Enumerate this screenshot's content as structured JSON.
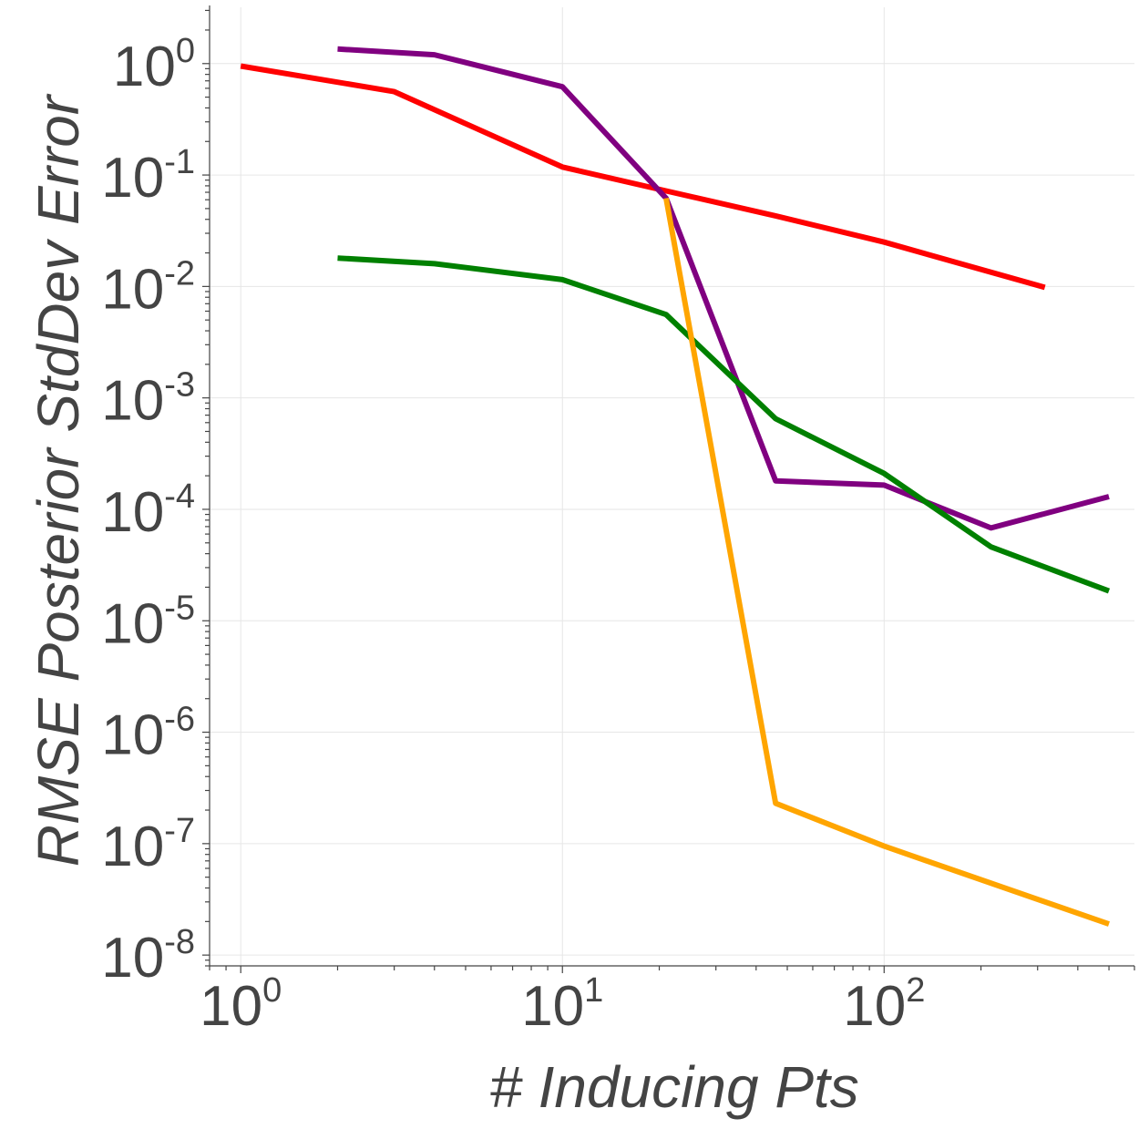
{
  "chart_data": {
    "type": "line",
    "title": "",
    "xlabel": "# Inducing Pts",
    "ylabel": "RMSE Posterior StdDev Error",
    "xscale": "log",
    "yscale": "log",
    "xlim": [
      0.8,
      600
    ],
    "ylim": [
      8e-09,
      3.2
    ],
    "grid": true,
    "xticks": [
      {
        "value": 1,
        "base": "10",
        "exp": "0"
      },
      {
        "value": 10,
        "base": "10",
        "exp": "1"
      },
      {
        "value": 100,
        "base": "10",
        "exp": "2"
      }
    ],
    "yticks": [
      {
        "value": 1,
        "base": "10",
        "exp": "0"
      },
      {
        "value": 0.1,
        "base": "10",
        "exp": "-1"
      },
      {
        "value": 0.01,
        "base": "10",
        "exp": "-2"
      },
      {
        "value": 0.001,
        "base": "10",
        "exp": "-3"
      },
      {
        "value": 0.0001,
        "base": "10",
        "exp": "-4"
      },
      {
        "value": 1e-05,
        "base": "10",
        "exp": "-5"
      },
      {
        "value": 1e-06,
        "base": "10",
        "exp": "-6"
      },
      {
        "value": 1e-07,
        "base": "10",
        "exp": "-7"
      },
      {
        "value": 1e-08,
        "base": "10",
        "exp": "-8"
      }
    ],
    "series": [
      {
        "name": "red",
        "color": "#ff0000",
        "x": [
          1,
          3,
          10,
          21,
          46,
          100,
          316
        ],
        "y": [
          0.95,
          0.56,
          0.118,
          0.072,
          0.043,
          0.025,
          0.0098
        ]
      },
      {
        "name": "purple",
        "color": "#800080",
        "x": [
          2,
          4,
          10,
          21,
          46,
          100,
          215,
          500
        ],
        "y": [
          1.35,
          1.2,
          0.62,
          0.062,
          0.00018,
          0.000165,
          6.8e-05,
          0.00013
        ]
      },
      {
        "name": "green",
        "color": "#008000",
        "x": [
          2,
          4,
          10,
          21,
          46,
          100,
          215,
          500
        ],
        "y": [
          0.018,
          0.016,
          0.0115,
          0.0056,
          0.00065,
          0.00021,
          4.6e-05,
          1.85e-05
        ]
      },
      {
        "name": "orange",
        "color": "#ffa500",
        "x": [
          21,
          46,
          100,
          500
        ],
        "y": [
          0.062,
          2.3e-07,
          9.5e-08,
          1.9e-08
        ]
      }
    ]
  }
}
